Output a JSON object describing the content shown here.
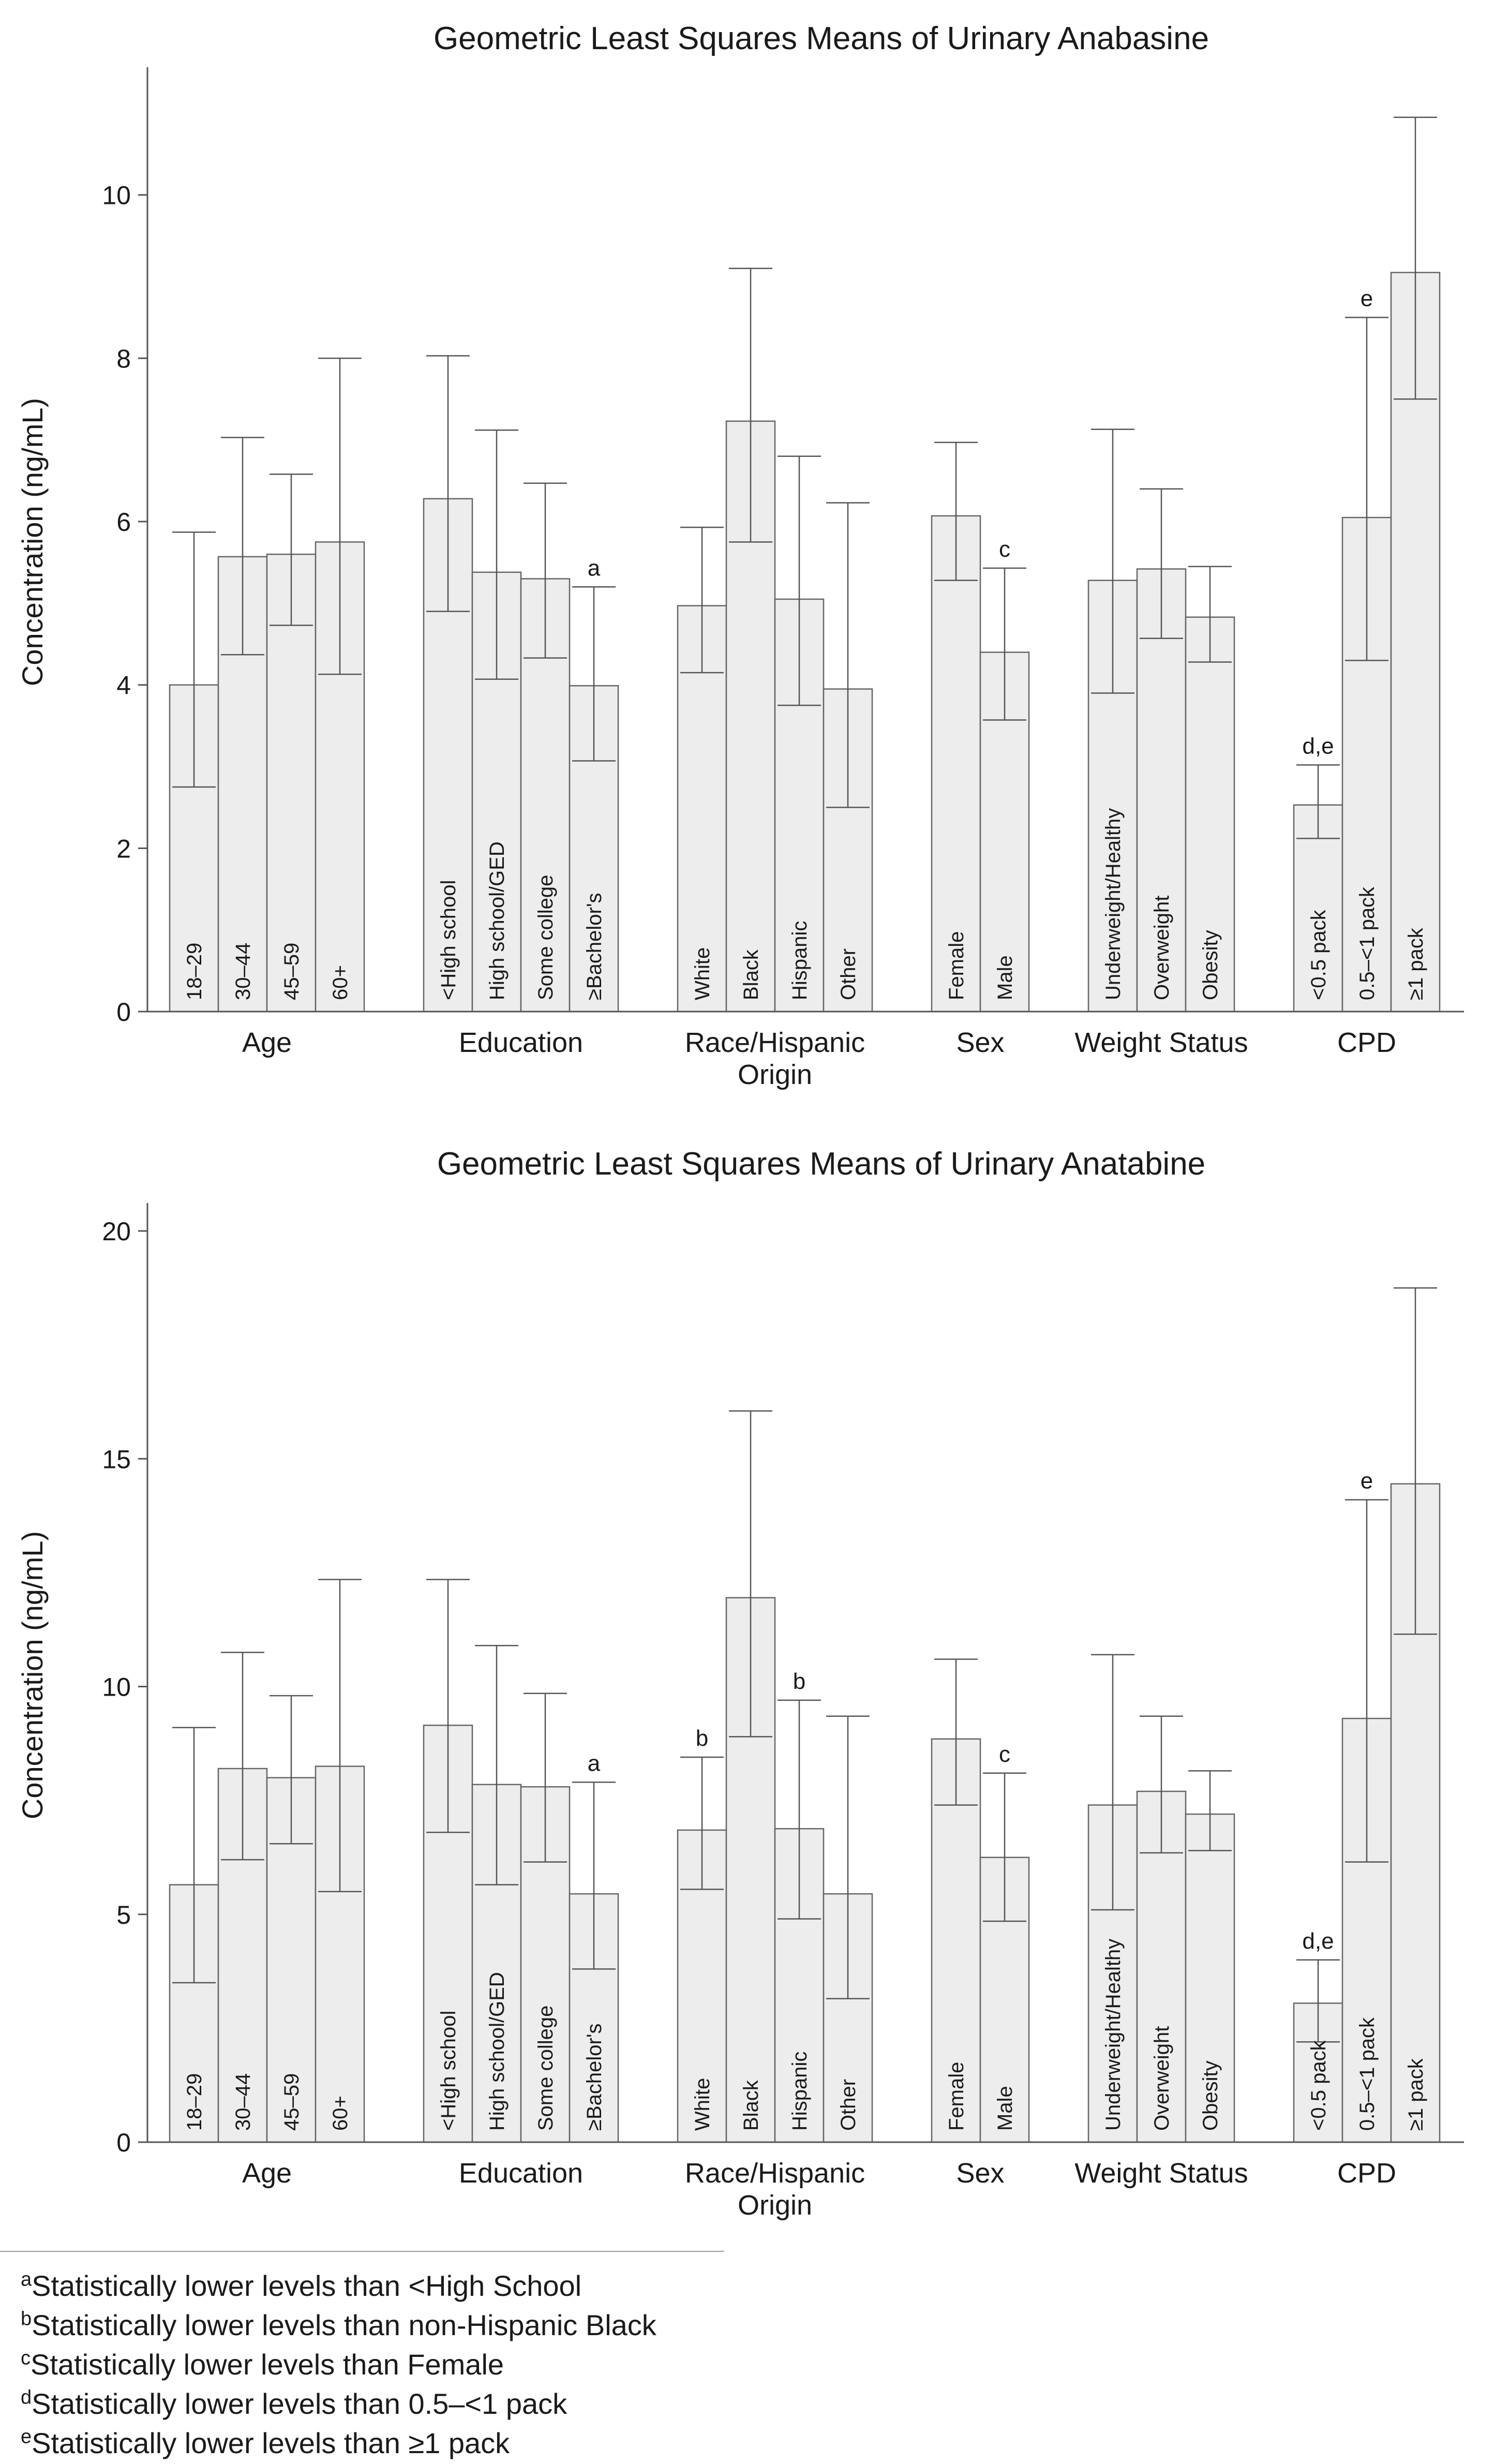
{
  "chart_data": [
    {
      "type": "bar",
      "title": "Geometric Least Squares Means of Urinary Anabasine",
      "ylabel": "Concentration (ng/mL)",
      "xlabel": "",
      "ylim": [
        0,
        11.5
      ],
      "yticks": [
        0,
        2,
        4,
        6,
        8,
        10
      ],
      "groups": [
        {
          "label": "Age",
          "bars": [
            {
              "label": "18–29",
              "value": 4.0,
              "lo": 2.75,
              "hi": 5.87,
              "sig": ""
            },
            {
              "label": "30–44",
              "value": 5.57,
              "lo": 4.37,
              "hi": 7.03,
              "sig": ""
            },
            {
              "label": "45–59",
              "value": 5.6,
              "lo": 4.73,
              "hi": 6.58,
              "sig": ""
            },
            {
              "label": "60+",
              "value": 5.75,
              "lo": 4.13,
              "hi": 8.0,
              "sig": ""
            }
          ]
        },
        {
          "label": "Education",
          "bars": [
            {
              "label": "<High school",
              "value": 6.28,
              "lo": 4.9,
              "hi": 8.03,
              "sig": ""
            },
            {
              "label": "High school/GED",
              "value": 5.38,
              "lo": 4.07,
              "hi": 7.12,
              "sig": ""
            },
            {
              "label": "Some college",
              "value": 5.3,
              "lo": 4.33,
              "hi": 6.47,
              "sig": ""
            },
            {
              "label": "≥Bachelor's",
              "value": 3.99,
              "lo": 3.07,
              "hi": 5.2,
              "sig": "a"
            }
          ]
        },
        {
          "label": "Race/Hispanic Origin",
          "bars": [
            {
              "label": "White",
              "value": 4.97,
              "lo": 4.15,
              "hi": 5.93,
              "sig": ""
            },
            {
              "label": "Black",
              "value": 7.23,
              "lo": 5.75,
              "hi": 9.1,
              "sig": ""
            },
            {
              "label": "Hispanic",
              "value": 5.05,
              "lo": 3.75,
              "hi": 6.8,
              "sig": ""
            },
            {
              "label": "Other",
              "value": 3.95,
              "lo": 2.5,
              "hi": 6.23,
              "sig": ""
            }
          ]
        },
        {
          "label": "Sex",
          "bars": [
            {
              "label": "Female",
              "value": 6.07,
              "lo": 5.28,
              "hi": 6.97,
              "sig": ""
            },
            {
              "label": "Male",
              "value": 4.4,
              "lo": 3.57,
              "hi": 5.43,
              "sig": "c"
            }
          ]
        },
        {
          "label": "Weight Status",
          "bars": [
            {
              "label": "Underweight/Healthy",
              "value": 5.28,
              "lo": 3.9,
              "hi": 7.13,
              "sig": ""
            },
            {
              "label": "Overweight",
              "value": 5.42,
              "lo": 4.57,
              "hi": 6.4,
              "sig": ""
            },
            {
              "label": "Obesity",
              "value": 4.83,
              "lo": 4.28,
              "hi": 5.45,
              "sig": ""
            }
          ]
        },
        {
          "label": "CPD",
          "bars": [
            {
              "label": "<0.5 pack",
              "value": 2.53,
              "lo": 2.12,
              "hi": 3.02,
              "sig": "d,e"
            },
            {
              "label": "0.5–<1 pack",
              "value": 6.05,
              "lo": 4.3,
              "hi": 8.5,
              "sig": "e"
            },
            {
              "label": "≥1 pack",
              "value": 9.05,
              "lo": 7.5,
              "hi": 10.95,
              "sig": ""
            }
          ]
        }
      ]
    },
    {
      "type": "bar",
      "title": "Geometric Least Squares Means of Urinary Anatabine",
      "ylabel": "Concentration (ng/mL)",
      "xlabel": "",
      "ylim": [
        0,
        20.5
      ],
      "yticks": [
        0,
        5,
        10,
        15,
        20
      ],
      "groups": [
        {
          "label": "Age",
          "bars": [
            {
              "label": "18–29",
              "value": 5.65,
              "lo": 3.5,
              "hi": 9.1,
              "sig": ""
            },
            {
              "label": "30–44",
              "value": 8.2,
              "lo": 6.2,
              "hi": 10.75,
              "sig": ""
            },
            {
              "label": "45–59",
              "value": 8.0,
              "lo": 6.55,
              "hi": 9.8,
              "sig": ""
            },
            {
              "label": "60+",
              "value": 8.25,
              "lo": 5.5,
              "hi": 12.35,
              "sig": ""
            }
          ]
        },
        {
          "label": "Education",
          "bars": [
            {
              "label": "<High school",
              "value": 9.15,
              "lo": 6.8,
              "hi": 12.35,
              "sig": ""
            },
            {
              "label": "High school/GED",
              "value": 7.85,
              "lo": 5.65,
              "hi": 10.9,
              "sig": ""
            },
            {
              "label": "Some college",
              "value": 7.8,
              "lo": 6.15,
              "hi": 9.85,
              "sig": ""
            },
            {
              "label": "≥Bachelor's",
              "value": 5.45,
              "lo": 3.8,
              "hi": 7.9,
              "sig": "a"
            }
          ]
        },
        {
          "label": "Race/Hispanic Origin",
          "bars": [
            {
              "label": "White",
              "value": 6.85,
              "lo": 5.55,
              "hi": 8.45,
              "sig": "b"
            },
            {
              "label": "Black",
              "value": 11.95,
              "lo": 8.9,
              "hi": 16.05,
              "sig": ""
            },
            {
              "label": "Hispanic",
              "value": 6.88,
              "lo": 4.9,
              "hi": 9.7,
              "sig": "b"
            },
            {
              "label": "Other",
              "value": 5.45,
              "lo": 3.15,
              "hi": 9.35,
              "sig": ""
            }
          ]
        },
        {
          "label": "Sex",
          "bars": [
            {
              "label": "Female",
              "value": 8.85,
              "lo": 7.4,
              "hi": 10.6,
              "sig": ""
            },
            {
              "label": "Male",
              "value": 6.25,
              "lo": 4.85,
              "hi": 8.1,
              "sig": "c"
            }
          ]
        },
        {
          "label": "Weight Status",
          "bars": [
            {
              "label": "Underweight/Healthy",
              "value": 7.4,
              "lo": 5.1,
              "hi": 10.7,
              "sig": ""
            },
            {
              "label": "Overweight",
              "value": 7.7,
              "lo": 6.35,
              "hi": 9.35,
              "sig": ""
            },
            {
              "label": "Obesity",
              "value": 7.2,
              "lo": 6.4,
              "hi": 8.15,
              "sig": ""
            }
          ]
        },
        {
          "label": "CPD",
          "bars": [
            {
              "label": "<0.5 pack",
              "value": 3.05,
              "lo": 2.2,
              "hi": 4.0,
              "sig": "d,e"
            },
            {
              "label": "0.5–<1 pack",
              "value": 9.3,
              "lo": 6.15,
              "hi": 14.1,
              "sig": "e"
            },
            {
              "label": "≥1 pack",
              "value": 14.45,
              "lo": 11.15,
              "hi": 18.75,
              "sig": ""
            }
          ]
        }
      ]
    }
  ],
  "footnotes": [
    {
      "mark": "a",
      "text": "Statistically lower levels than <High School"
    },
    {
      "mark": "b",
      "text": "Statistically lower levels than non-Hispanic Black"
    },
    {
      "mark": "c",
      "text": "Statistically lower levels than Female"
    },
    {
      "mark": "d",
      "text": "Statistically lower levels than 0.5–<1 pack"
    },
    {
      "mark": "e",
      "text": "Statistically lower levels than ≥1 pack"
    }
  ]
}
